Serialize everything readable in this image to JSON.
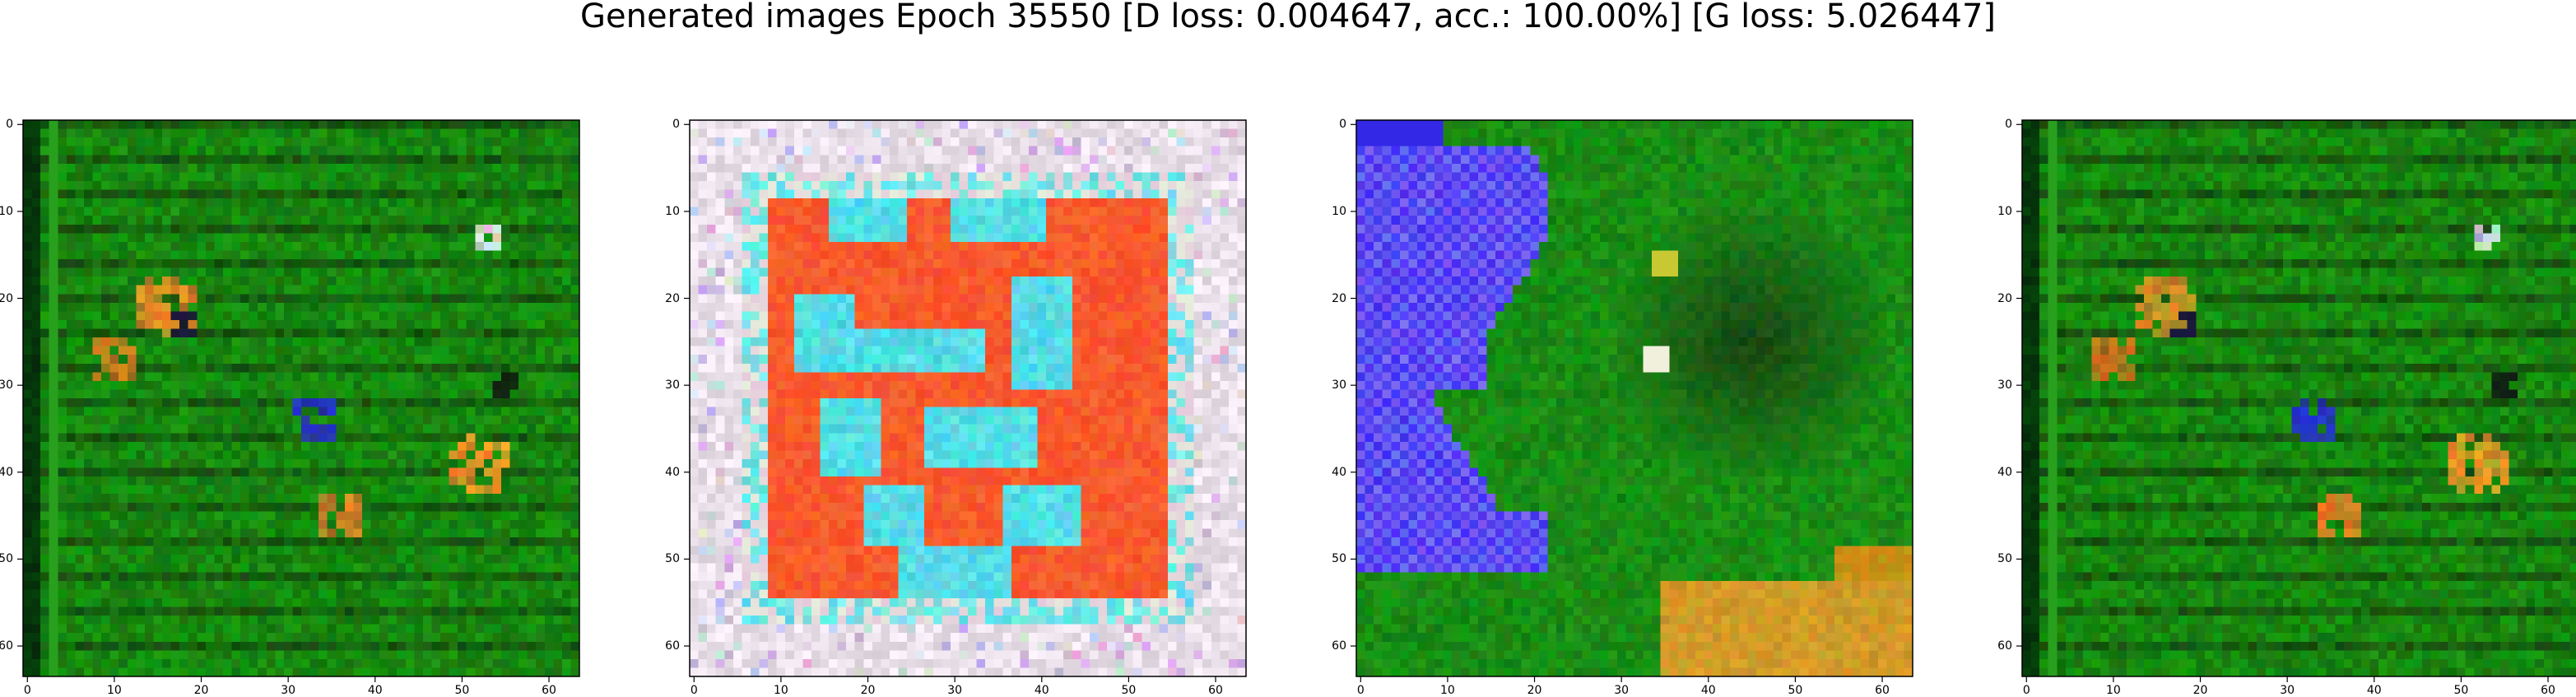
{
  "figure": {
    "suptitle": "Generated images Epoch 35550 [D loss: 0.004647, acc.: 100.00%] [G loss: 5.026447]"
  },
  "axes": {
    "x_ticks": [
      "0",
      "10",
      "20",
      "30",
      "40",
      "50",
      "60"
    ],
    "y_ticks": [
      "0",
      "10",
      "20",
      "30",
      "40",
      "50",
      "60"
    ],
    "x_tick_values": [
      0,
      10,
      20,
      30,
      40,
      50,
      60
    ],
    "y_tick_values": [
      0,
      10,
      20,
      30,
      40,
      50,
      60
    ],
    "xlim": [
      -0.5,
      63.5
    ],
    "ylim": [
      63.5,
      -0.5
    ]
  },
  "panels": [
    {
      "id": "generated-image-1",
      "description_color": "#1f7a1f",
      "scene": "green"
    },
    {
      "id": "generated-image-2",
      "description_color": "#f05a28",
      "scene": "orange-square"
    },
    {
      "id": "generated-image-3",
      "description_color": "#1a7a1a",
      "scene": "blue-green"
    },
    {
      "id": "generated-image-4",
      "description_color": "#1f7a1f",
      "scene": "green"
    }
  ]
}
